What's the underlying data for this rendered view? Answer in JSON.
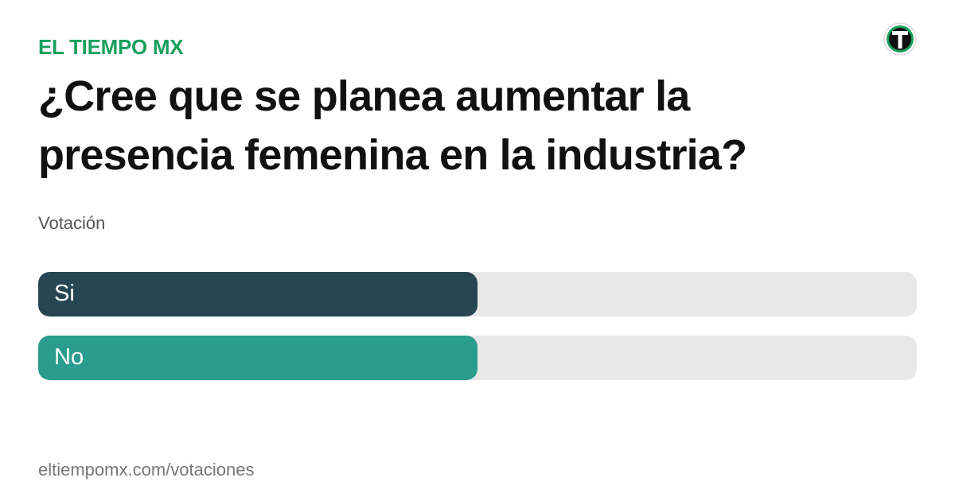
{
  "header": {
    "brand": "EL TIEMPO MX"
  },
  "chart_data": {
    "type": "bar",
    "orientation": "horizontal",
    "title": "¿Cree que se planea aumentar la presencia femenina en la industria?",
    "subtitle": "Votación",
    "categories": [
      "Si",
      "No"
    ],
    "values": [
      50,
      50
    ],
    "colors": [
      "#264653",
      "#2a9d8f"
    ],
    "xlim": [
      0,
      100
    ]
  },
  "footer": {
    "url": "eltiempomx.com/votaciones"
  }
}
